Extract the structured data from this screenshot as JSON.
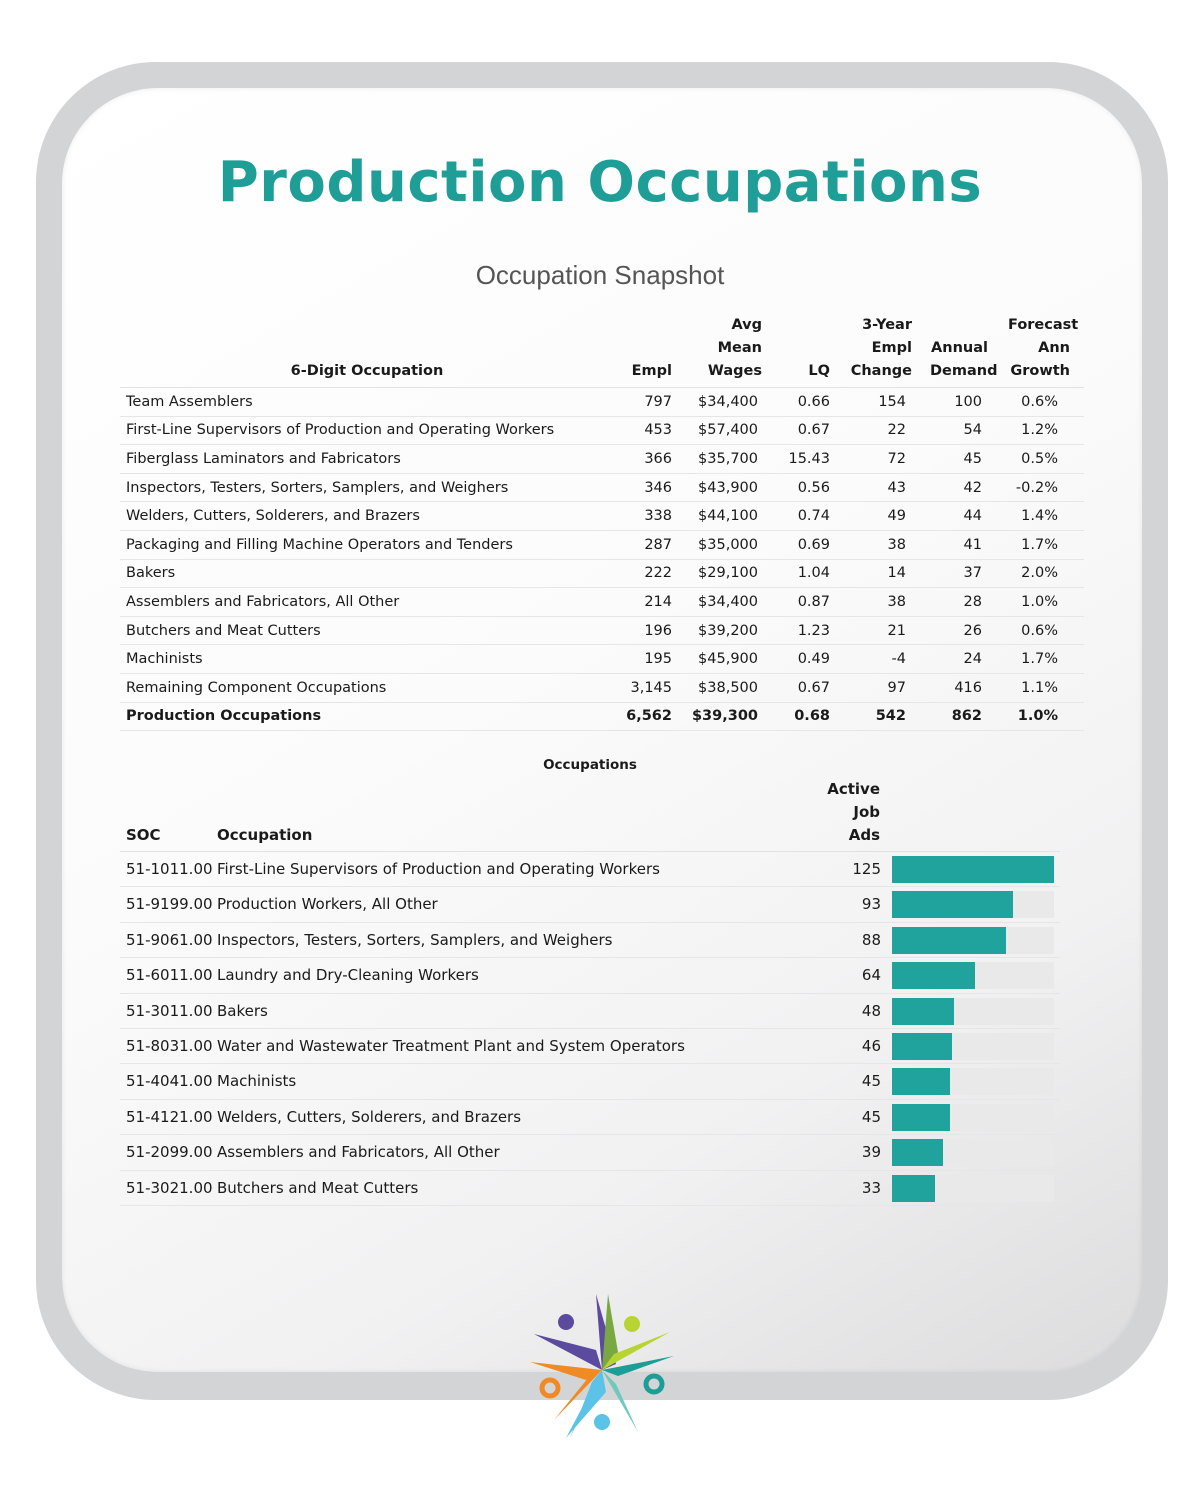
{
  "title": "Production Occupations",
  "subtitle": "Occupation Snapshot",
  "snapshot": {
    "headers": {
      "occupation": "6-Digit Occupation",
      "empl": "Empl",
      "wages": "Avg\nMean\nWages",
      "lq": "LQ",
      "change": "3-Year\nEmpl\nChange",
      "demand": "Annual\nDemand",
      "growth": "Forecast\nAnn\nGrowth"
    },
    "rows": [
      {
        "occupation": "Team Assemblers",
        "empl": "797",
        "wages": "$34,400",
        "lq": "0.66",
        "change": "154",
        "demand": "100",
        "growth": "0.6%"
      },
      {
        "occupation": "First-Line Supervisors of Production and Operating Workers",
        "empl": "453",
        "wages": "$57,400",
        "lq": "0.67",
        "change": "22",
        "demand": "54",
        "growth": "1.2%"
      },
      {
        "occupation": "Fiberglass Laminators and Fabricators",
        "empl": "366",
        "wages": "$35,700",
        "lq": "15.43",
        "change": "72",
        "demand": "45",
        "growth": "0.5%"
      },
      {
        "occupation": "Inspectors, Testers, Sorters, Samplers, and Weighers",
        "empl": "346",
        "wages": "$43,900",
        "lq": "0.56",
        "change": "43",
        "demand": "42",
        "growth": "-0.2%"
      },
      {
        "occupation": "Welders, Cutters, Solderers, and Brazers",
        "empl": "338",
        "wages": "$44,100",
        "lq": "0.74",
        "change": "49",
        "demand": "44",
        "growth": "1.4%"
      },
      {
        "occupation": "Packaging and Filling Machine Operators and Tenders",
        "empl": "287",
        "wages": "$35,000",
        "lq": "0.69",
        "change": "38",
        "demand": "41",
        "growth": "1.7%"
      },
      {
        "occupation": "Bakers",
        "empl": "222",
        "wages": "$29,100",
        "lq": "1.04",
        "change": "14",
        "demand": "37",
        "growth": "2.0%"
      },
      {
        "occupation": "Assemblers and Fabricators, All Other",
        "empl": "214",
        "wages": "$34,400",
        "lq": "0.87",
        "change": "38",
        "demand": "28",
        "growth": "1.0%"
      },
      {
        "occupation": "Butchers and Meat Cutters",
        "empl": "196",
        "wages": "$39,200",
        "lq": "1.23",
        "change": "21",
        "demand": "26",
        "growth": "0.6%"
      },
      {
        "occupation": "Machinists",
        "empl": "195",
        "wages": "$45,900",
        "lq": "0.49",
        "change": "-4",
        "demand": "24",
        "growth": "1.7%"
      },
      {
        "occupation": "Remaining Component Occupations",
        "empl": "3,145",
        "wages": "$38,500",
        "lq": "0.67",
        "change": "97",
        "demand": "416",
        "growth": "1.1%"
      }
    ],
    "total": {
      "occupation": "Production Occupations",
      "empl": "6,562",
      "wages": "$39,300",
      "lq": "0.68",
      "change": "542",
      "demand": "862",
      "growth": "1.0%"
    }
  },
  "job_ads": {
    "caption": "Occupations",
    "headers": {
      "soc": "SOC",
      "occupation": "Occupation",
      "ads": "Active\nJob\nAds"
    },
    "max_value": 125,
    "colors": {
      "bar": "#1fa39c",
      "track": "#e9e9e9"
    },
    "rows": [
      {
        "soc": "51-1011.00",
        "occupation": "First-Line Supervisors of Production and Operating Workers",
        "ads": "125",
        "value": 125
      },
      {
        "soc": "51-9199.00",
        "occupation": "Production Workers, All Other",
        "ads": "93",
        "value": 93
      },
      {
        "soc": "51-9061.00",
        "occupation": "Inspectors, Testers, Sorters, Samplers, and Weighers",
        "ads": "88",
        "value": 88
      },
      {
        "soc": "51-6011.00",
        "occupation": "Laundry and Dry-Cleaning Workers",
        "ads": "64",
        "value": 64
      },
      {
        "soc": "51-3011.00",
        "occupation": "Bakers",
        "ads": "48",
        "value": 48
      },
      {
        "soc": "51-8031.00",
        "occupation": "Water and Wastewater Treatment Plant and System Operators",
        "ads": "46",
        "value": 46
      },
      {
        "soc": "51-4041.00",
        "occupation": "Machinists",
        "ads": "45",
        "value": 45
      },
      {
        "soc": "51-4121.00",
        "occupation": "Welders, Cutters, Solderers, and Brazers",
        "ads": "45",
        "value": 45
      },
      {
        "soc": "51-2099.00",
        "occupation": "Assemblers and Fabricators, All Other",
        "ads": "39",
        "value": 39
      },
      {
        "soc": "51-3021.00",
        "occupation": "Butchers and Meat Cutters",
        "ads": "33",
        "value": 33
      }
    ]
  },
  "logo": {
    "icon": "star-people-logo-icon",
    "colors": [
      "#5b4a9e",
      "#79a843",
      "#1d9d96",
      "#f08a24",
      "#5bc3e8",
      "#b8d432",
      "#6fc9bd"
    ]
  },
  "chart_data": {
    "type": "bar",
    "categories": [
      "First-Line Supervisors of Production and Operating Workers",
      "Production Workers, All Other",
      "Inspectors, Testers, Sorters, Samplers, and Weighers",
      "Laundry and Dry-Cleaning Workers",
      "Bakers",
      "Water and Wastewater Treatment Plant and System Operators",
      "Machinists",
      "Welders, Cutters, Solderers, and Brazers",
      "Assemblers and Fabricators, All Other",
      "Butchers and Meat Cutters"
    ],
    "values": [
      125,
      93,
      88,
      64,
      48,
      46,
      45,
      45,
      39,
      33
    ],
    "orientation": "horizontal",
    "ylim": [
      0,
      125
    ]
  }
}
